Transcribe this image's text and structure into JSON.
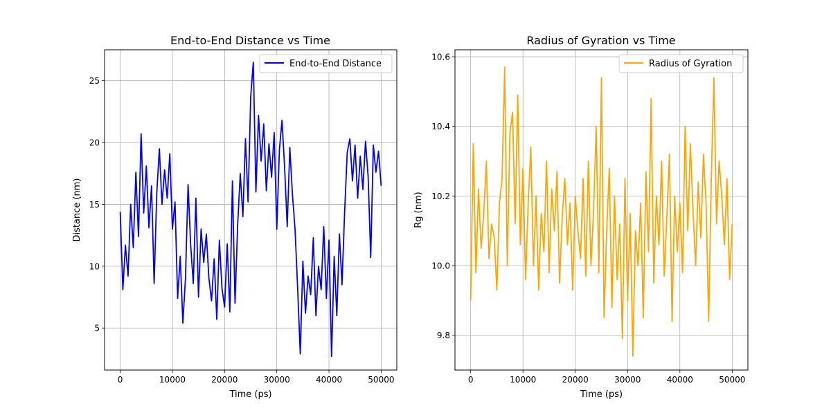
{
  "chart_data": [
    {
      "type": "line",
      "title": "End-to-End Distance vs Time",
      "xlabel": "Time (ps)",
      "ylabel": "Distance (nm)",
      "xlim": [
        -3000,
        53000
      ],
      "ylim": [
        1.6,
        27.5
      ],
      "xticks": [
        0,
        10000,
        20000,
        30000,
        40000,
        50000
      ],
      "yticks": [
        5,
        10,
        15,
        20,
        25
      ],
      "grid": true,
      "legend_position": "upper-right",
      "series": [
        {
          "name": "End-to-End Distance",
          "color": "#0000ff",
          "x": [
            0,
            500,
            1000,
            1500,
            2000,
            2500,
            3000,
            3500,
            4000,
            4500,
            5000,
            5500,
            6000,
            6500,
            7000,
            7500,
            8000,
            8500,
            9000,
            9500,
            10000,
            10500,
            11000,
            11500,
            12000,
            12500,
            13000,
            13500,
            14000,
            14500,
            15000,
            15500,
            16000,
            16500,
            17000,
            17500,
            18000,
            18500,
            19000,
            19500,
            20000,
            20500,
            21000,
            21500,
            22000,
            22500,
            23000,
            23500,
            24000,
            24500,
            25000,
            25500,
            26000,
            26500,
            27000,
            27500,
            28000,
            28500,
            29000,
            29500,
            30000,
            30500,
            31000,
            31500,
            32000,
            32500,
            33000,
            33500,
            34000,
            34500,
            35000,
            35500,
            36000,
            36500,
            37000,
            37500,
            38000,
            38500,
            39000,
            39500,
            40000,
            40500,
            41000,
            41500,
            42000,
            42500,
            43000,
            43500,
            44000,
            44500,
            45000,
            45500,
            46000,
            46500,
            47000,
            47500,
            48000,
            48500,
            49000,
            49500,
            50000
          ],
          "y": [
            14.4,
            8.1,
            11.7,
            9.2,
            15.0,
            11.5,
            17.6,
            12.4,
            20.7,
            14.3,
            18.1,
            13.1,
            16.5,
            8.6,
            15.9,
            19.5,
            15.0,
            17.8,
            15.5,
            19.1,
            13.0,
            15.2,
            7.4,
            10.8,
            5.4,
            9.0,
            16.6,
            11.7,
            8.6,
            15.5,
            7.5,
            13.0,
            10.3,
            12.6,
            9.0,
            7.2,
            10.6,
            5.7,
            12.1,
            8.2,
            6.7,
            11.8,
            6.3,
            16.9,
            7.0,
            13.3,
            17.5,
            14.0,
            20.3,
            15.2,
            23.7,
            26.5,
            16.0,
            22.2,
            18.5,
            21.5,
            16.1,
            19.9,
            17.2,
            20.8,
            13.0,
            19.4,
            21.8,
            18.0,
            13.2,
            19.6,
            15.8,
            13.0,
            8.2,
            2.9,
            10.4,
            6.2,
            9.2,
            7.7,
            12.3,
            6.0,
            10.0,
            8.1,
            13.2,
            7.4,
            12.1,
            2.7,
            10.8,
            6.0,
            12.6,
            8.5,
            14.4,
            19.2,
            20.3,
            16.9,
            19.8,
            15.5,
            18.9,
            16.2,
            20.1,
            17.3,
            10.7,
            19.8,
            17.6,
            19.3,
            16.5
          ]
        }
      ]
    },
    {
      "type": "line",
      "title": "Radius of Gyration vs Time",
      "xlabel": "Time (ps)",
      "ylabel": "Rg (nm)",
      "xlim": [
        -3000,
        53000
      ],
      "ylim": [
        9.7,
        10.62
      ],
      "xticks": [
        0,
        10000,
        20000,
        30000,
        40000,
        50000
      ],
      "yticks": [
        9.8,
        10.0,
        10.2,
        10.4,
        10.6
      ],
      "grid": true,
      "legend_position": "upper-right",
      "series": [
        {
          "name": "Radius of Gyration",
          "color": "#ffa500",
          "x": [
            0,
            500,
            1000,
            1500,
            2000,
            2500,
            3000,
            3500,
            4000,
            4500,
            5000,
            5500,
            6000,
            6500,
            7000,
            7500,
            8000,
            8500,
            9000,
            9500,
            10000,
            10500,
            11000,
            11500,
            12000,
            12500,
            13000,
            13500,
            14000,
            14500,
            15000,
            15500,
            16000,
            16500,
            17000,
            17500,
            18000,
            18500,
            19000,
            19500,
            20000,
            20500,
            21000,
            21500,
            22000,
            22500,
            23000,
            23500,
            24000,
            24500,
            25000,
            25500,
            26000,
            26500,
            27000,
            27500,
            28000,
            28500,
            29000,
            29500,
            30000,
            30500,
            31000,
            31500,
            32000,
            32500,
            33000,
            33500,
            34000,
            34500,
            35000,
            35500,
            36000,
            36500,
            37000,
            37500,
            38000,
            38500,
            39000,
            39500,
            40000,
            40500,
            41000,
            41500,
            42000,
            42500,
            43000,
            43500,
            44000,
            44500,
            45000,
            45500,
            46000,
            46500,
            47000,
            47500,
            48000,
            48500,
            49000,
            49500,
            50000
          ],
          "y": [
            9.9,
            10.35,
            9.98,
            10.22,
            10.05,
            10.15,
            10.3,
            10.02,
            10.12,
            10.08,
            9.93,
            10.18,
            10.25,
            10.57,
            10.0,
            10.38,
            10.44,
            10.12,
            10.49,
            10.06,
            10.28,
            9.96,
            10.18,
            10.34,
            10.0,
            10.2,
            9.93,
            10.15,
            10.04,
            10.3,
            9.98,
            10.22,
            10.1,
            10.27,
            9.95,
            10.14,
            10.25,
            10.06,
            10.18,
            9.93,
            10.2,
            10.1,
            10.02,
            10.25,
            9.97,
            10.3,
            10.0,
            10.16,
            10.4,
            9.98,
            10.54,
            9.85,
            10.1,
            10.28,
            9.88,
            10.2,
            9.96,
            10.12,
            9.79,
            10.25,
            9.9,
            10.15,
            9.74,
            10.1,
            10.0,
            10.18,
            9.85,
            10.27,
            10.04,
            10.48,
            9.95,
            10.2,
            10.06,
            10.3,
            9.97,
            10.14,
            10.32,
            9.84,
            10.2,
            10.04,
            10.18,
            9.98,
            10.4,
            10.1,
            10.35,
            10.16,
            10.0,
            10.24,
            10.08,
            10.32,
            10.18,
            9.84,
            10.25,
            10.54,
            10.12,
            10.3,
            10.2,
            10.06,
            10.25,
            9.96,
            10.12
          ]
        }
      ]
    }
  ]
}
